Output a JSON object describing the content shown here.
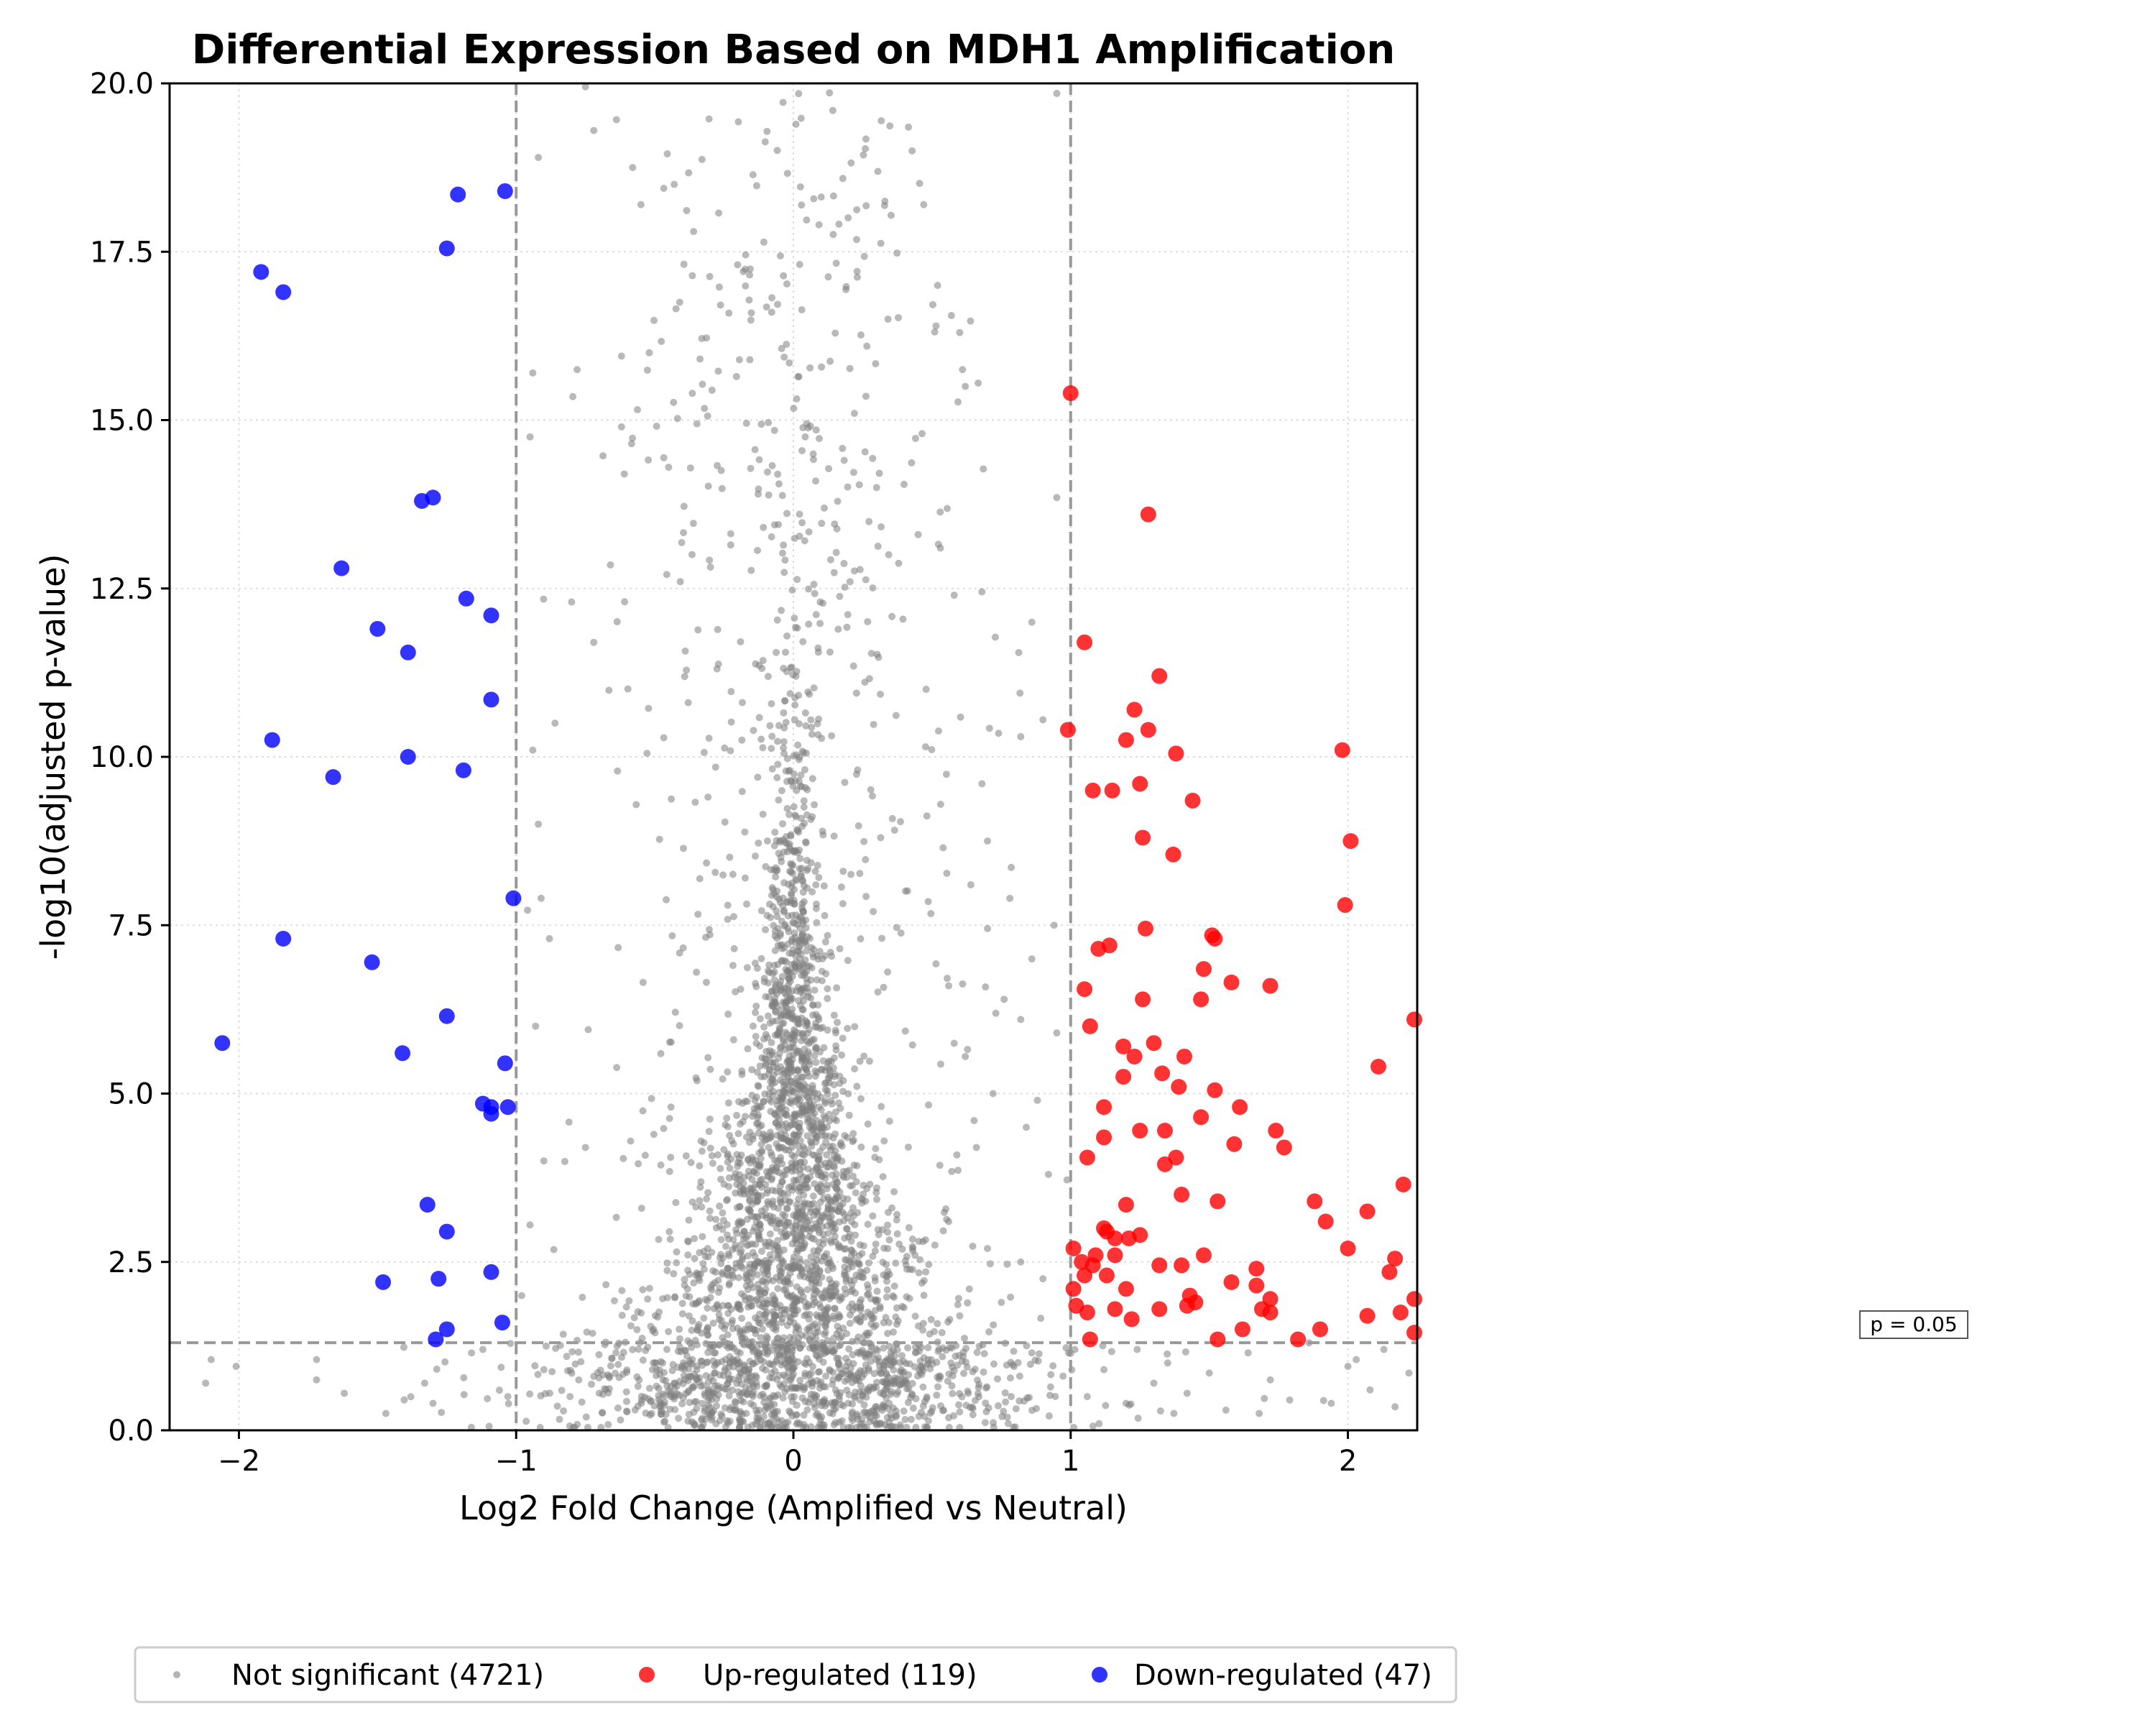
{
  "chart_data": {
    "type": "scatter",
    "title": "Differential Expression Based on MDH1 Amplification",
    "xlabel": "Log2 Fold Change (Amplified vs Neutral)",
    "ylabel": "-log10(adjusted p-value)",
    "xlim": [
      -2.25,
      2.25
    ],
    "ylim": [
      0,
      20
    ],
    "x_ticks": [
      "−2",
      "−1",
      "0",
      "1",
      "2"
    ],
    "y_ticks": [
      "0.0",
      "2.5",
      "5.0",
      "7.5",
      "10.0",
      "12.5",
      "15.0",
      "17.5",
      "20.0"
    ],
    "grid": true,
    "thresholds": {
      "fold_change": [
        -1,
        1
      ],
      "neg_log10_p": 1.301
    },
    "threshold_label": "p = 0.05",
    "legend_position": "bottom-center",
    "series": [
      {
        "name": "Not significant (4721)",
        "color": "#808080",
        "count": 4721,
        "points": [
          [
            -2.12,
            0.7
          ],
          [
            -2.1,
            1.05
          ],
          [
            -2.01,
            0.95
          ],
          [
            -1.72,
            0.75
          ],
          [
            -1.72,
            1.05
          ],
          [
            -1.62,
            0.55
          ],
          [
            -1.47,
            0.25
          ],
          [
            -1.33,
            0.7
          ],
          [
            -1.3,
            0.4
          ],
          [
            -1.12,
            1.2
          ],
          [
            -1.03,
            0.5
          ],
          [
            -0.75,
            19.95
          ],
          [
            -0.72,
            19.3
          ],
          [
            -0.58,
            18.75
          ],
          [
            -0.92,
            18.9
          ],
          [
            -0.55,
            18.2
          ],
          [
            -0.43,
            18.5
          ],
          [
            -0.36,
            17.8
          ],
          [
            -0.41,
            16.75
          ],
          [
            -0.52,
            16.0
          ],
          [
            -0.62,
            15.95
          ],
          [
            -0.94,
            15.7
          ],
          [
            -0.78,
            15.75
          ],
          [
            -0.95,
            14.75
          ],
          [
            -0.62,
            14.9
          ],
          [
            -0.61,
            14.2
          ],
          [
            -0.45,
            14.3
          ],
          [
            -0.66,
            12.85
          ],
          [
            -0.8,
            12.3
          ],
          [
            -0.72,
            11.7
          ],
          [
            -0.86,
            10.5
          ],
          [
            -0.94,
            10.1
          ],
          [
            -0.92,
            9.0
          ],
          [
            -0.91,
            7.9
          ],
          [
            -0.88,
            7.3
          ],
          [
            -0.93,
            6.0
          ],
          [
            -0.74,
            5.95
          ],
          [
            -0.75,
            4.2
          ],
          [
            -0.9,
            4.0
          ],
          [
            -0.95,
            3.05
          ],
          [
            -0.98,
            2.0
          ],
          [
            -0.9,
            0.9
          ],
          [
            0.33,
            18.25
          ],
          [
            0.47,
            18.2
          ],
          [
            0.52,
            17.0
          ],
          [
            0.6,
            16.3
          ],
          [
            0.61,
            15.75
          ],
          [
            0.62,
            15.5
          ],
          [
            0.22,
            15.1
          ],
          [
            0.45,
            13.3
          ],
          [
            0.53,
            13.1
          ],
          [
            0.58,
            12.4
          ],
          [
            0.68,
            12.45
          ],
          [
            0.86,
            12.0
          ],
          [
            0.9,
            10.55
          ],
          [
            0.74,
            10.35
          ],
          [
            0.82,
            10.3
          ],
          [
            0.68,
            9.6
          ],
          [
            0.7,
            8.75
          ],
          [
            0.54,
            8.65
          ],
          [
            0.64,
            8.1
          ],
          [
            0.7,
            7.45
          ],
          [
            0.86,
            7.0
          ],
          [
            0.94,
            7.5
          ],
          [
            0.82,
            6.1
          ],
          [
            0.76,
            6.4
          ],
          [
            0.56,
            6.6
          ],
          [
            0.95,
            5.9
          ],
          [
            0.62,
            5.55
          ],
          [
            0.72,
            5.0
          ],
          [
            0.88,
            4.9
          ],
          [
            0.84,
            4.5
          ],
          [
            0.92,
            3.8
          ],
          [
            0.66,
            4.2
          ],
          [
            0.56,
            3.1
          ],
          [
            0.7,
            2.7
          ],
          [
            0.82,
            2.5
          ],
          [
            0.9,
            2.25
          ],
          [
            0.75,
            1.9
          ],
          [
            0.6,
            1.7
          ],
          [
            0.86,
            1.15
          ],
          [
            0.95,
            19.85
          ],
          [
            0.95,
            13.85
          ],
          [
            1.06,
            0.5
          ],
          [
            1.12,
            0.9
          ],
          [
            1.2,
            0.4
          ],
          [
            1.24,
            1.2
          ],
          [
            1.3,
            0.7
          ],
          [
            1.35,
            1.0
          ],
          [
            1.42,
            0.55
          ],
          [
            1.5,
            0.85
          ],
          [
            1.56,
            0.3
          ],
          [
            1.64,
            1.15
          ],
          [
            1.68,
            0.25
          ],
          [
            1.72,
            0.75
          ],
          [
            1.79,
            0.45
          ],
          [
            1.86,
            1.3
          ],
          [
            1.94,
            0.4
          ],
          [
            2.0,
            0.95
          ],
          [
            2.03,
            1.05
          ],
          [
            2.08,
            0.6
          ],
          [
            2.13,
            1.2
          ],
          [
            2.17,
            0.35
          ],
          [
            2.22,
            0.85
          ]
        ]
      },
      {
        "name": "Up-regulated (119)",
        "color": "#ff0000",
        "count": 119,
        "points": [
          [
            1.0,
            15.4
          ],
          [
            1.28,
            13.6
          ],
          [
            1.05,
            11.7
          ],
          [
            1.32,
            11.2
          ],
          [
            0.99,
            10.4
          ],
          [
            1.23,
            10.7
          ],
          [
            1.28,
            10.4
          ],
          [
            1.2,
            10.25
          ],
          [
            1.38,
            10.05
          ],
          [
            1.98,
            10.1
          ],
          [
            1.08,
            9.5
          ],
          [
            1.15,
            9.5
          ],
          [
            1.25,
            9.6
          ],
          [
            1.44,
            9.35
          ],
          [
            1.26,
            8.8
          ],
          [
            2.01,
            8.75
          ],
          [
            1.37,
            8.55
          ],
          [
            1.99,
            7.8
          ],
          [
            1.27,
            7.45
          ],
          [
            1.51,
            7.35
          ],
          [
            1.52,
            7.3
          ],
          [
            1.1,
            7.15
          ],
          [
            1.14,
            7.2
          ],
          [
            1.48,
            6.85
          ],
          [
            1.05,
            6.55
          ],
          [
            1.58,
            6.65
          ],
          [
            1.72,
            6.6
          ],
          [
            1.26,
            6.4
          ],
          [
            1.47,
            6.4
          ],
          [
            2.24,
            6.1
          ],
          [
            1.07,
            6.0
          ],
          [
            1.3,
            5.75
          ],
          [
            1.19,
            5.7
          ],
          [
            1.23,
            5.55
          ],
          [
            1.41,
            5.55
          ],
          [
            2.11,
            5.4
          ],
          [
            1.33,
            5.3
          ],
          [
            1.19,
            5.25
          ],
          [
            1.39,
            5.1
          ],
          [
            1.52,
            5.05
          ],
          [
            1.12,
            4.8
          ],
          [
            1.61,
            4.8
          ],
          [
            1.47,
            4.65
          ],
          [
            1.74,
            4.45
          ],
          [
            1.25,
            4.45
          ],
          [
            1.34,
            4.45
          ],
          [
            1.12,
            4.35
          ],
          [
            1.59,
            4.25
          ],
          [
            1.77,
            4.2
          ],
          [
            1.06,
            4.05
          ],
          [
            1.38,
            4.05
          ],
          [
            1.34,
            3.95
          ],
          [
            1.4,
            3.5
          ],
          [
            1.53,
            3.4
          ],
          [
            1.88,
            3.4
          ],
          [
            2.2,
            3.65
          ],
          [
            1.2,
            3.35
          ],
          [
            2.07,
            3.25
          ],
          [
            1.92,
            3.1
          ],
          [
            1.12,
            3.0
          ],
          [
            1.13,
            2.95
          ],
          [
            1.25,
            2.9
          ],
          [
            1.16,
            2.85
          ],
          [
            1.21,
            2.85
          ],
          [
            1.01,
            2.7
          ],
          [
            2.0,
            2.7
          ],
          [
            1.09,
            2.6
          ],
          [
            1.16,
            2.6
          ],
          [
            1.48,
            2.6
          ],
          [
            1.04,
            2.5
          ],
          [
            2.17,
            2.55
          ],
          [
            1.08,
            2.45
          ],
          [
            1.32,
            2.45
          ],
          [
            1.4,
            2.45
          ],
          [
            1.67,
            2.4
          ],
          [
            2.15,
            2.35
          ],
          [
            1.13,
            2.3
          ],
          [
            1.05,
            2.3
          ],
          [
            1.58,
            2.2
          ],
          [
            1.67,
            2.15
          ],
          [
            1.2,
            2.1
          ],
          [
            1.01,
            2.1
          ],
          [
            1.43,
            2.0
          ],
          [
            1.72,
            1.95
          ],
          [
            2.25,
            1.95
          ],
          [
            1.45,
            1.9
          ],
          [
            1.69,
            1.8
          ],
          [
            1.02,
            1.85
          ],
          [
            1.16,
            1.8
          ],
          [
            1.32,
            1.8
          ],
          [
            1.42,
            1.85
          ],
          [
            1.06,
            1.75
          ],
          [
            1.72,
            1.75
          ],
          [
            2.19,
            1.75
          ],
          [
            2.07,
            1.7
          ],
          [
            1.22,
            1.65
          ],
          [
            1.62,
            1.5
          ],
          [
            1.9,
            1.5
          ],
          [
            1.07,
            1.35
          ],
          [
            1.53,
            1.35
          ],
          [
            1.82,
            1.35
          ],
          [
            2.25,
            1.45
          ]
        ]
      },
      {
        "name": "Down-regulated (47)",
        "color": "#0000ff",
        "count": 47,
        "points": [
          [
            -1.04,
            18.4
          ],
          [
            -1.21,
            18.35
          ],
          [
            -1.25,
            17.55
          ],
          [
            -1.92,
            17.2
          ],
          [
            -1.84,
            16.9
          ],
          [
            -1.3,
            13.85
          ],
          [
            -1.34,
            13.8
          ],
          [
            -1.63,
            12.8
          ],
          [
            -1.18,
            12.35
          ],
          [
            -1.09,
            12.1
          ],
          [
            -1.5,
            11.9
          ],
          [
            -1.39,
            11.55
          ],
          [
            -1.09,
            10.85
          ],
          [
            -1.88,
            10.25
          ],
          [
            -1.39,
            10.0
          ],
          [
            -1.19,
            9.8
          ],
          [
            -1.66,
            9.7
          ],
          [
            -1.01,
            7.9
          ],
          [
            -1.84,
            7.3
          ],
          [
            -1.52,
            6.95
          ],
          [
            -1.25,
            6.15
          ],
          [
            -2.06,
            5.75
          ],
          [
            -1.41,
            5.6
          ],
          [
            -1.04,
            5.45
          ],
          [
            -1.12,
            4.85
          ],
          [
            -1.09,
            4.8
          ],
          [
            -1.03,
            4.8
          ],
          [
            -1.09,
            4.7
          ],
          [
            -1.32,
            3.35
          ],
          [
            -1.25,
            2.95
          ],
          [
            -1.09,
            2.35
          ],
          [
            -1.28,
            2.25
          ],
          [
            -1.48,
            2.2
          ],
          [
            -1.05,
            1.6
          ],
          [
            -1.25,
            1.5
          ],
          [
            -1.29,
            1.35
          ]
        ]
      }
    ]
  }
}
